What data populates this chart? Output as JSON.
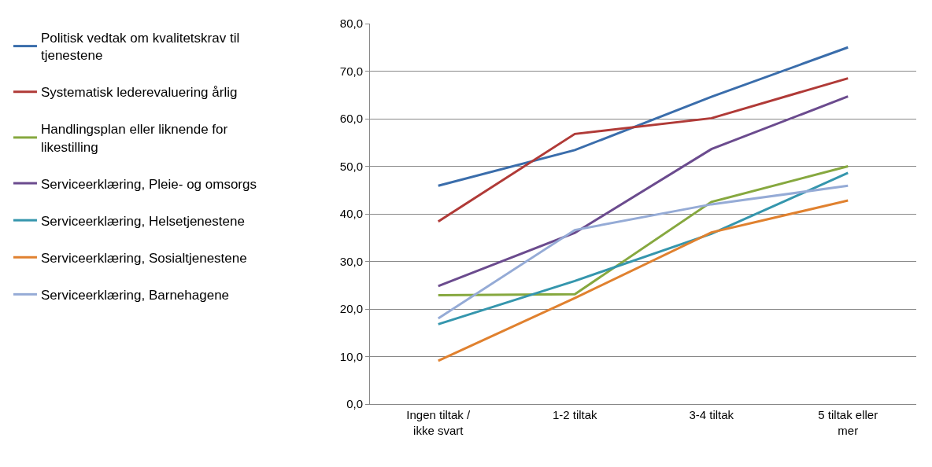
{
  "chart_data": {
    "type": "line",
    "categories": [
      "Ingen tiltak / ikke svart",
      "1-2 tiltak",
      "3-4 tiltak",
      "5 tiltak eller mer"
    ],
    "series": [
      {
        "name": "Politisk vedtak om kvalitetskrav til tjenestene",
        "color": "#3a6dab",
        "values": [
          45.9,
          53.4,
          64.6,
          75.0
        ]
      },
      {
        "name": "Systematisk lederevaluering årlig",
        "color": "#b03a37",
        "values": [
          38.4,
          56.8,
          60.1,
          68.5
        ]
      },
      {
        "name": "Handlingsplan eller liknende for likestilling",
        "color": "#86a83f",
        "values": [
          22.9,
          23.1,
          42.5,
          50.0
        ]
      },
      {
        "name": "Serviceerklæring, Pleie- og omsorgs",
        "color": "#6b4b8e",
        "values": [
          24.8,
          36.0,
          53.6,
          64.7
        ]
      },
      {
        "name": "Serviceerklæring, Helsetjenestene",
        "color": "#3596ad",
        "values": [
          16.8,
          25.9,
          35.8,
          48.6
        ]
      },
      {
        "name": "Serviceerklæring, Sosialtjenestene",
        "color": "#e0812f",
        "values": [
          9.1,
          22.3,
          36.1,
          42.8
        ]
      },
      {
        "name": "Serviceerklæring, Barnehagene",
        "color": "#95abd6",
        "values": [
          18.0,
          36.6,
          42.0,
          45.9
        ]
      }
    ],
    "ylim": [
      0,
      80
    ],
    "yticks": [
      {
        "value": 0,
        "label": "0,0"
      },
      {
        "value": 10,
        "label": "10,0"
      },
      {
        "value": 20,
        "label": "20,0"
      },
      {
        "value": 30,
        "label": "30,0"
      },
      {
        "value": 40,
        "label": "40,0"
      },
      {
        "value": 50,
        "label": "50,0"
      },
      {
        "value": 60,
        "label": "60,0"
      },
      {
        "value": 70,
        "label": "70,0"
      },
      {
        "value": 80,
        "label": "80,0"
      }
    ],
    "grid": "y",
    "legend": "left",
    "marker": "none",
    "line_style": "solid"
  }
}
